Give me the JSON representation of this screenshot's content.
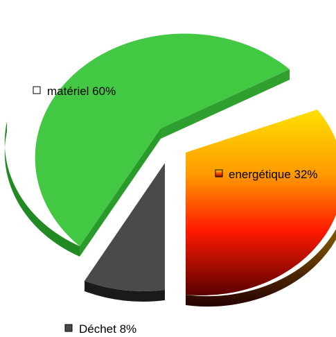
{
  "chart_data": {
    "type": "pie",
    "style": "3d-exploded",
    "slices": [
      {
        "name": "matériel",
        "value": 60,
        "label": "matériel 60%",
        "color": "#43c843"
      },
      {
        "name": "energétique",
        "value": 32,
        "label": "energétique 32%",
        "color": "#f08a00"
      },
      {
        "name": "Déchet",
        "value": 8,
        "label": "Déchet 8%",
        "color": "#4a4a4a"
      }
    ],
    "title": "",
    "legend": "inline-labels"
  }
}
